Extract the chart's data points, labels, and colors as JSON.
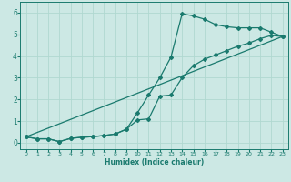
{
  "title": "",
  "xlabel": "Humidex (Indice chaleur)",
  "ylabel": "",
  "background_color": "#cce8e4",
  "line_color": "#1a7a6e",
  "grid_color": "#b0d8d0",
  "xlim": [
    -0.5,
    23.5
  ],
  "ylim": [
    -0.3,
    6.5
  ],
  "xticks": [
    0,
    1,
    2,
    3,
    4,
    5,
    6,
    7,
    8,
    9,
    10,
    11,
    12,
    13,
    14,
    15,
    16,
    17,
    18,
    19,
    20,
    21,
    22,
    23
  ],
  "yticks": [
    0,
    1,
    2,
    3,
    4,
    5,
    6
  ],
  "line1_x": [
    0,
    1,
    2,
    3,
    4,
    5,
    6,
    7,
    8,
    9,
    10,
    11,
    12,
    13,
    14,
    15,
    16,
    17,
    18,
    19,
    20,
    21,
    22,
    23
  ],
  "line1_y": [
    0.27,
    0.18,
    0.18,
    0.05,
    0.2,
    0.25,
    0.28,
    0.33,
    0.4,
    0.62,
    1.38,
    2.2,
    3.0,
    3.95,
    5.95,
    5.85,
    5.7,
    5.45,
    5.35,
    5.3,
    5.3,
    5.3,
    5.1,
    4.9
  ],
  "line2_x": [
    0,
    1,
    2,
    3,
    4,
    5,
    6,
    7,
    8,
    9,
    10,
    11,
    12,
    13,
    14,
    15,
    16,
    17,
    18,
    19,
    20,
    21,
    22,
    23
  ],
  "line2_y": [
    0.27,
    0.18,
    0.18,
    0.05,
    0.2,
    0.25,
    0.28,
    0.33,
    0.4,
    0.62,
    1.05,
    1.1,
    2.15,
    2.2,
    3.0,
    3.55,
    3.85,
    4.05,
    4.25,
    4.45,
    4.6,
    4.8,
    4.95,
    4.9
  ],
  "line3_x": [
    0,
    23
  ],
  "line3_y": [
    0.27,
    4.9
  ],
  "marker_size": 2.0,
  "line_width": 0.9
}
